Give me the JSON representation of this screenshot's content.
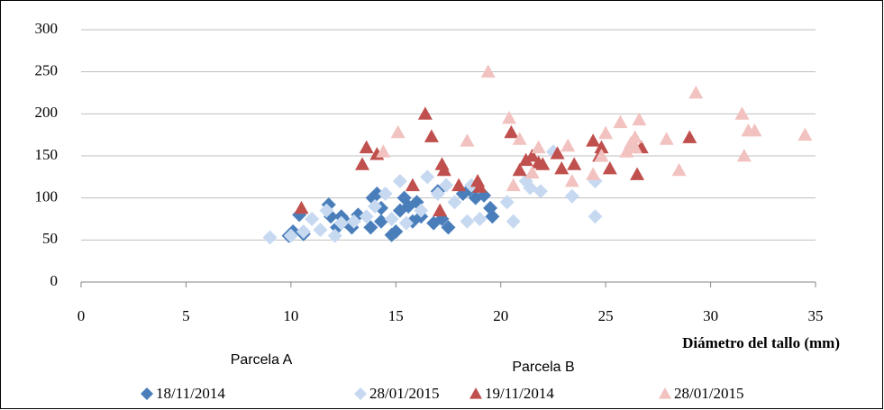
{
  "chart_data": {
    "type": "scatter",
    "x_label": "Diámetro del tallo (mm)",
    "annotations": [
      "Parcela A",
      "Parcela B"
    ],
    "xlim": [
      0,
      35
    ],
    "xticks": [
      0,
      5,
      10,
      15,
      20,
      25,
      30,
      35
    ],
    "ylim": [
      0,
      300
    ],
    "yticks": [
      0,
      50,
      100,
      150,
      200,
      250,
      300
    ],
    "grid": true,
    "series": [
      {
        "name": "18/11/2014",
        "color": "#4a7ebb",
        "marker": "diamond",
        "x": [
          9.9,
          10.1,
          10.4,
          10.6,
          11.8,
          11.9,
          12.2,
          12.4,
          12.6,
          12.9,
          13.2,
          13.8,
          13.9,
          14.1,
          14.3,
          14.3,
          14.8,
          15.0,
          15.2,
          15.4,
          15.6,
          15.8,
          16.0,
          16.2,
          16.8,
          17.0,
          17.2,
          17.5,
          18.2,
          18.5,
          18.8,
          19.2,
          19.5,
          19.6
        ],
        "values": [
          55,
          60,
          80,
          57,
          92,
          78,
          65,
          78,
          72,
          65,
          80,
          65,
          100,
          105,
          88,
          72,
          56,
          60,
          85,
          100,
          90,
          72,
          95,
          78,
          70,
          108,
          75,
          65,
          105,
          110,
          100,
          103,
          88,
          78
        ]
      },
      {
        "name": "28/01/2015",
        "color": "#c6d9f1",
        "marker": "diamond",
        "x": [
          9.0,
          10.0,
          10.6,
          11.0,
          11.4,
          11.7,
          12.1,
          12.4,
          13.0,
          13.6,
          14.0,
          14.5,
          14.8,
          15.2,
          15.5,
          16.2,
          16.5,
          17.0,
          17.4,
          17.8,
          18.4,
          18.6,
          19.0,
          20.3,
          20.6,
          21.2,
          21.4,
          21.9,
          22.5,
          23.4,
          24.5,
          24.5
        ],
        "values": [
          53,
          55,
          60,
          75,
          62,
          85,
          55,
          70,
          72,
          78,
          90,
          105,
          75,
          120,
          70,
          85,
          125,
          105,
          115,
          95,
          72,
          115,
          75,
          95,
          72,
          120,
          112,
          108,
          155,
          102,
          78,
          120
        ]
      },
      {
        "name": "19/11/2014",
        "color": "#c0504d",
        "marker": "triangle",
        "x": [
          10.5,
          13.4,
          13.6,
          14.1,
          15.8,
          16.4,
          16.7,
          17.1,
          17.2,
          17.3,
          18.0,
          18.9,
          19.0,
          20.5,
          20.9,
          21.2,
          21.5,
          21.8,
          22.0,
          22.7,
          22.9,
          23.5,
          24.4,
          24.7,
          24.8,
          25.2,
          26.3,
          26.5,
          26.7,
          29.0
        ],
        "values": [
          88,
          140,
          160,
          152,
          115,
          200,
          173,
          85,
          140,
          133,
          115,
          120,
          113,
          178,
          133,
          145,
          150,
          142,
          140,
          153,
          135,
          140,
          168,
          150,
          160,
          135,
          165,
          128,
          160,
          172
        ]
      },
      {
        "name": "28/01/2015",
        "color": "#f2c2c0",
        "marker": "triangle",
        "x": [
          14.4,
          15.1,
          18.4,
          19.4,
          20.4,
          20.6,
          20.9,
          21.5,
          21.8,
          23.2,
          23.4,
          24.4,
          24.8,
          25.0,
          25.7,
          26.0,
          26.2,
          26.4,
          26.6,
          26.4,
          27.9,
          28.5,
          29.3,
          31.5,
          31.6,
          31.8,
          32.1,
          34.5
        ],
        "values": [
          155,
          178,
          168,
          250,
          195,
          115,
          170,
          130,
          160,
          162,
          120,
          128,
          150,
          177,
          190,
          155,
          165,
          172,
          193,
          160,
          170,
          133,
          225,
          200,
          150,
          180,
          180,
          175
        ]
      }
    ]
  }
}
